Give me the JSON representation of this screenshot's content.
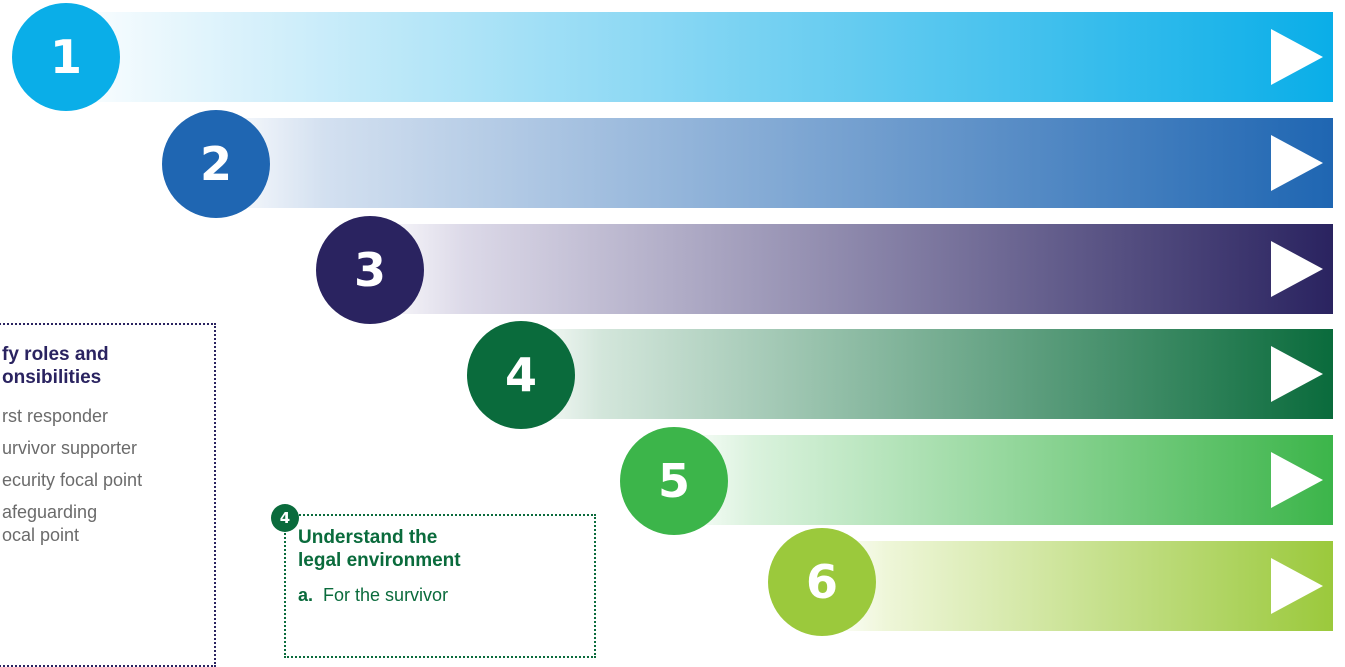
{
  "steps": [
    {
      "number": "1",
      "color": "#0aaee8",
      "light": "#e6f6fd"
    },
    {
      "number": "2",
      "color": "#1f66b2",
      "light": "#e7eef8"
    },
    {
      "number": "3",
      "color": "#2a2360",
      "light": "#eceaf2"
    },
    {
      "number": "4",
      "color": "#0a6b3c",
      "light": "#e3efe8"
    },
    {
      "number": "5",
      "color": "#3cb54a",
      "light": "#e6f5e7"
    },
    {
      "number": "6",
      "color": "#9bc93c",
      "light": "#f3f8e4"
    }
  ],
  "card_left": {
    "title_line1": "fy roles and",
    "title_line2": "onsibilities",
    "items": [
      "rst responder",
      "urvivor supporter",
      "ecurity focal point",
      "afeguarding",
      "ocal point"
    ],
    "color": "#2a2360"
  },
  "card_right": {
    "badge": "4",
    "title_line1": "Understand the",
    "title_line2": "legal environment",
    "item_marker": "a.",
    "item_text": "For the survivor",
    "color": "#0a6b3c"
  }
}
